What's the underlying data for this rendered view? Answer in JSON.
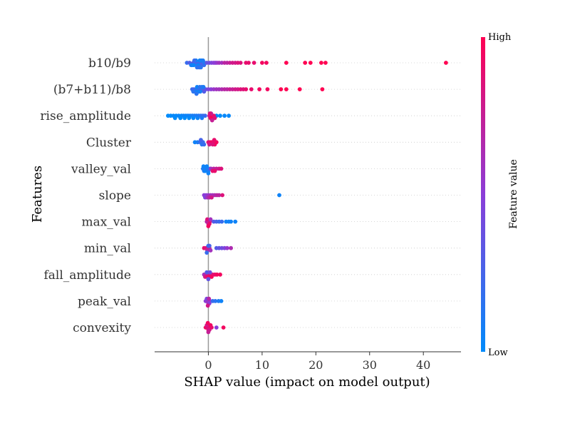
{
  "chart_data": {
    "type": "scatter",
    "subtype": "shap-beeswarm",
    "title": "",
    "xlabel": "SHAP value (impact on model output)",
    "ylabel": "Features",
    "xlim": [
      -10,
      47
    ],
    "xticks": [
      0,
      10,
      20,
      30,
      40
    ],
    "grid": false,
    "features": [
      {
        "name": "b10/b9",
        "points": [
          [
            -4,
            0.2
          ],
          [
            -3.5,
            0.3
          ],
          [
            -3.2,
            0.1
          ],
          [
            -2.8,
            0.3
          ],
          [
            -2.5,
            0.35
          ],
          [
            -2.2,
            0.3
          ],
          [
            -2,
            0.25
          ],
          [
            -1.8,
            0.3
          ],
          [
            -1.5,
            0.3
          ],
          [
            -1.2,
            0.25
          ],
          [
            -1,
            0.25
          ],
          [
            -0.8,
            0.2
          ],
          [
            -3,
            0.05
          ],
          [
            -2.7,
            0.05
          ],
          [
            -2.3,
            0.05
          ],
          [
            -1.9,
            0.05
          ],
          [
            -1.6,
            0.05
          ],
          [
            -1.3,
            0.08
          ],
          [
            -1,
            0.1
          ],
          [
            -0.7,
            0.12
          ],
          [
            -2.6,
            0.2
          ],
          [
            -2.1,
            0.15
          ],
          [
            -1.7,
            0.18
          ],
          [
            -1.4,
            0.15
          ],
          [
            -0.3,
            0.35
          ],
          [
            0.2,
            0.4
          ],
          [
            0.6,
            0.45
          ],
          [
            1,
            0.5
          ],
          [
            1.3,
            0.5
          ],
          [
            1.6,
            0.55
          ],
          [
            2,
            0.6
          ],
          [
            2.5,
            0.6
          ],
          [
            3,
            0.7
          ],
          [
            3.5,
            0.7
          ],
          [
            4,
            0.75
          ],
          [
            4.5,
            0.8
          ],
          [
            5,
            0.8
          ],
          [
            5.5,
            0.85
          ],
          [
            6,
            0.85
          ],
          [
            7,
            0.9
          ],
          [
            7.5,
            0.9
          ],
          [
            8.5,
            0.9
          ],
          [
            10,
            0.95
          ],
          [
            10.8,
            0.95
          ],
          [
            14.5,
            1.0
          ],
          [
            18,
            1.0
          ],
          [
            19,
            1.0
          ],
          [
            21,
            1.0
          ],
          [
            21.8,
            1.0
          ],
          [
            44.2,
            1.0
          ]
        ]
      },
      {
        "name": "(b7+b11)/b8",
        "points": [
          [
            -3,
            0.2
          ],
          [
            -2.7,
            0.25
          ],
          [
            -2.3,
            0.2
          ],
          [
            -2,
            0.25
          ],
          [
            -1.7,
            0.25
          ],
          [
            -1.4,
            0.3
          ],
          [
            -1.1,
            0.3
          ],
          [
            -0.8,
            0.3
          ],
          [
            -0.5,
            0.35
          ],
          [
            -2.5,
            0.05
          ],
          [
            -2.1,
            0.05
          ],
          [
            -1.8,
            0.05
          ],
          [
            -1.5,
            0.08
          ],
          [
            -1.2,
            0.1
          ],
          [
            -0.9,
            0.1
          ],
          [
            -2.8,
            0.15
          ],
          [
            -2.2,
            0.15
          ],
          [
            -1.6,
            0.15
          ],
          [
            0,
            0.45
          ],
          [
            0.5,
            0.5
          ],
          [
            1,
            0.55
          ],
          [
            1.5,
            0.6
          ],
          [
            2,
            0.6
          ],
          [
            2.5,
            0.65
          ],
          [
            3,
            0.7
          ],
          [
            3.5,
            0.7
          ],
          [
            4,
            0.75
          ],
          [
            4.5,
            0.75
          ],
          [
            5,
            0.8
          ],
          [
            5.5,
            0.8
          ],
          [
            6,
            0.85
          ],
          [
            6.5,
            0.85
          ],
          [
            7,
            0.9
          ],
          [
            8,
            0.9
          ],
          [
            9.5,
            0.95
          ],
          [
            11,
            0.95
          ],
          [
            13.5,
            1.0
          ],
          [
            14.5,
            1.0
          ],
          [
            17,
            1.0
          ],
          [
            21.2,
            1.0
          ]
        ]
      },
      {
        "name": "rise_amplitude",
        "points": [
          [
            -7.5,
            0.0
          ],
          [
            -7,
            0.0
          ],
          [
            -6.5,
            0.02
          ],
          [
            -6,
            0.02
          ],
          [
            -5.5,
            0.03
          ],
          [
            -5,
            0.03
          ],
          [
            -4.6,
            0.05
          ],
          [
            -4.2,
            0.05
          ],
          [
            -3.8,
            0.05
          ],
          [
            -3.4,
            0.08
          ],
          [
            -3,
            0.08
          ],
          [
            -2.6,
            0.1
          ],
          [
            -2.2,
            0.1
          ],
          [
            -1.8,
            0.12
          ],
          [
            -1.4,
            0.15
          ],
          [
            -1,
            0.2
          ],
          [
            -0.6,
            0.2
          ],
          [
            -6.2,
            0.0
          ],
          [
            -5.2,
            0.0
          ],
          [
            -4.4,
            0.0
          ],
          [
            -3.6,
            0.0
          ],
          [
            -2.8,
            0.02
          ],
          [
            -2,
            0.05
          ],
          [
            -1.2,
            0.1
          ],
          [
            1.5,
            0.0
          ],
          [
            2.2,
            0.0
          ],
          [
            3,
            0.02
          ],
          [
            3.8,
            0.02
          ],
          [
            0.2,
            0.8
          ],
          [
            0.4,
            0.9
          ],
          [
            0.6,
            0.95
          ],
          [
            0.8,
            1.0
          ],
          [
            1,
            0.9
          ],
          [
            1.2,
            0.85
          ],
          [
            0.5,
            0.7
          ],
          [
            0.3,
            0.85
          ],
          [
            0.7,
            0.75
          ]
        ]
      },
      {
        "name": "Cluster",
        "points": [
          [
            -2.5,
            0.05
          ],
          [
            -2,
            0.1
          ],
          [
            -1.5,
            0.2
          ],
          [
            -1.2,
            0.15
          ],
          [
            -1,
            0.2
          ],
          [
            -0.8,
            0.2
          ],
          [
            -1.4,
            0.25
          ],
          [
            0,
            0.85
          ],
          [
            0.3,
            0.9
          ],
          [
            0.6,
            0.95
          ],
          [
            0.9,
            0.9
          ],
          [
            1.2,
            0.95
          ],
          [
            1.5,
            0.95
          ],
          [
            0.2,
            0.8
          ],
          [
            0.8,
            0.85
          ],
          [
            1.1,
            0.9
          ]
        ]
      },
      {
        "name": "valley_val",
        "points": [
          [
            -1,
            0.1
          ],
          [
            -0.8,
            0.1
          ],
          [
            -0.5,
            0.1
          ],
          [
            -0.2,
            0.1
          ],
          [
            0,
            0.15
          ],
          [
            0.3,
            0.15
          ],
          [
            -0.9,
            0.05
          ],
          [
            -0.6,
            0.05
          ],
          [
            -0.3,
            0.05
          ],
          [
            0,
            0.05
          ],
          [
            0.5,
            0.6
          ],
          [
            1,
            0.7
          ],
          [
            1.5,
            0.75
          ],
          [
            2,
            0.8
          ],
          [
            2.4,
            0.85
          ],
          [
            0.8,
            0.9
          ],
          [
            1.2,
            0.9
          ]
        ]
      },
      {
        "name": "slope",
        "points": [
          [
            -0.8,
            0.5
          ],
          [
            -0.4,
            0.5
          ],
          [
            0,
            0.55
          ],
          [
            0.4,
            0.6
          ],
          [
            0.8,
            0.6
          ],
          [
            1.2,
            0.65
          ],
          [
            1.6,
            0.7
          ],
          [
            2,
            0.7
          ],
          [
            -0.6,
            0.45
          ],
          [
            -0.2,
            0.6
          ],
          [
            0.2,
            0.7
          ],
          [
            0.6,
            0.8
          ],
          [
            2.6,
            0.85
          ],
          [
            13.2,
            0.05
          ]
        ]
      },
      {
        "name": "max_val",
        "points": [
          [
            -0.3,
            0.7
          ],
          [
            0,
            0.75
          ],
          [
            0.3,
            0.8
          ],
          [
            -0.2,
            0.85
          ],
          [
            0.2,
            0.9
          ],
          [
            0,
            0.95
          ],
          [
            0.4,
            0.6
          ],
          [
            1,
            0.3
          ],
          [
            1.5,
            0.25
          ],
          [
            2,
            0.2
          ],
          [
            2.5,
            0.2
          ],
          [
            3.3,
            0.05
          ],
          [
            4.2,
            0.05
          ],
          [
            5,
            0.05
          ],
          [
            3.8,
            0.05
          ]
        ]
      },
      {
        "name": "min_val",
        "points": [
          [
            -0.8,
            0.9
          ],
          [
            -0.4,
            0.85
          ],
          [
            0,
            0.8
          ],
          [
            -0.2,
            0.7
          ],
          [
            0.2,
            0.75
          ],
          [
            0.4,
            0.6
          ],
          [
            0,
            0.15
          ],
          [
            -0.3,
            0.2
          ],
          [
            0.2,
            0.25
          ],
          [
            1.5,
            0.3
          ],
          [
            2,
            0.35
          ],
          [
            2.5,
            0.4
          ],
          [
            3,
            0.45
          ],
          [
            3.5,
            0.55
          ],
          [
            4.2,
            0.65
          ]
        ]
      },
      {
        "name": "fall_amplitude",
        "points": [
          [
            -0.8,
            0.6
          ],
          [
            -0.4,
            0.7
          ],
          [
            0,
            0.75
          ],
          [
            0.4,
            0.8
          ],
          [
            0.8,
            0.85
          ],
          [
            1.2,
            0.9
          ],
          [
            -0.6,
            0.8
          ],
          [
            -0.2,
            0.9
          ],
          [
            0.2,
            0.95
          ],
          [
            0.6,
            0.95
          ],
          [
            1.6,
            0.95
          ],
          [
            2.2,
            0.95
          ],
          [
            -0.3,
            0.3
          ],
          [
            0,
            0.35
          ],
          [
            0.3,
            0.4
          ]
        ]
      },
      {
        "name": "peak_val",
        "points": [
          [
            -0.5,
            0.5
          ],
          [
            -0.2,
            0.55
          ],
          [
            0,
            0.6
          ],
          [
            0.3,
            0.55
          ],
          [
            -0.3,
            0.45
          ],
          [
            0.2,
            0.5
          ],
          [
            0.1,
            0.7
          ],
          [
            -0.1,
            0.8
          ],
          [
            0.8,
            0.2
          ],
          [
            1.3,
            0.15
          ],
          [
            1.9,
            0.1
          ],
          [
            2.4,
            0.05
          ]
        ]
      },
      {
        "name": "convexity",
        "points": [
          [
            -0.5,
            0.95
          ],
          [
            -0.2,
            0.9
          ],
          [
            0,
            0.85
          ],
          [
            0.3,
            0.9
          ],
          [
            -0.3,
            0.8
          ],
          [
            0.2,
            0.8
          ],
          [
            0,
            0.75
          ],
          [
            0.4,
            0.95
          ],
          [
            -0.1,
            0.95
          ],
          [
            0.6,
            0.9
          ],
          [
            1.5,
            0.5
          ],
          [
            2.8,
            0.95
          ]
        ]
      }
    ],
    "colorbar": {
      "label": "Feature value",
      "high_label": "High",
      "low_label": "Low",
      "high_color": "#ff0052",
      "low_color": "#008bfb",
      "mid_color": "#8b3dd8"
    }
  }
}
